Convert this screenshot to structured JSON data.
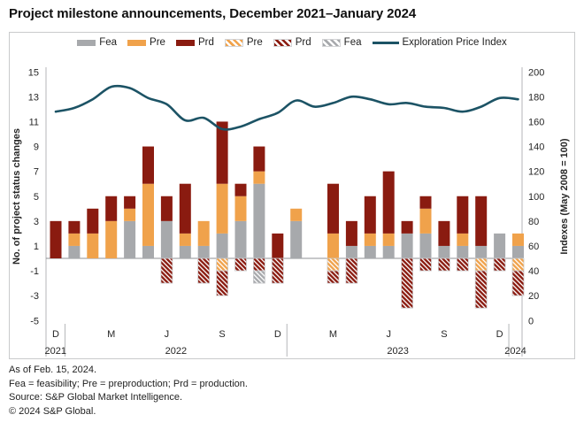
{
  "title": "Project milestone announcements, December 2021–January 2024",
  "legend": {
    "items": [
      {
        "label": "Fea",
        "swatch": "solid",
        "color_key": "fea"
      },
      {
        "label": "Pre",
        "swatch": "solid",
        "color_key": "pre"
      },
      {
        "label": "Prd",
        "swatch": "solid",
        "color_key": "prd"
      },
      {
        "label": "Pre",
        "swatch": "hatch",
        "color_key": "pre"
      },
      {
        "label": "Prd",
        "swatch": "hatch",
        "color_key": "prd"
      },
      {
        "label": "Fea",
        "swatch": "hatch",
        "color_key": "fea"
      },
      {
        "label": "Exploration Price Index",
        "swatch": "line",
        "color_key": "line"
      }
    ]
  },
  "colors": {
    "fea": "#a7a9ac",
    "pre": "#f0a24b",
    "prd": "#8a1b10",
    "line": "#1c5365",
    "axis_text": "#262626",
    "axis_line": "#b4b6b8",
    "zero_line": "#8f9194",
    "hatch_border": "#c9cacc"
  },
  "chart_data": {
    "type": "bar",
    "subtype": "stacked-bar-with-line-overlay",
    "title": "Project milestone announcements, December 2021–January 2024",
    "months": [
      "Dec 2021",
      "Jan 2022",
      "Feb 2022",
      "Mar 2022",
      "Apr 2022",
      "May 2022",
      "Jun 2022",
      "Jul 2022",
      "Aug 2022",
      "Sep 2022",
      "Oct 2022",
      "Nov 2022",
      "Dec 2022",
      "Jan 2023",
      "Feb 2023",
      "Mar 2023",
      "Apr 2023",
      "May 2023",
      "Jun 2023",
      "Jul 2023",
      "Aug 2023",
      "Sep 2023",
      "Oct 2023",
      "Nov 2023",
      "Dec 2023",
      "Jan 2024"
    ],
    "stacked_bars": {
      "positive_order": [
        "fea",
        "pre",
        "prd"
      ],
      "fea": [
        0,
        1,
        0,
        0,
        3,
        1,
        3,
        1,
        1,
        2,
        3,
        6,
        0,
        3,
        0,
        0,
        1,
        1,
        1,
        2,
        2,
        1,
        1,
        1,
        2,
        1
      ],
      "pre": [
        0,
        1,
        2,
        3,
        1,
        5,
        0,
        1,
        2,
        4,
        2,
        1,
        0,
        1,
        0,
        2,
        0,
        1,
        1,
        0,
        2,
        0,
        1,
        0,
        0,
        1
      ],
      "prd": [
        3,
        1,
        2,
        2,
        1,
        3,
        2,
        4,
        0,
        5,
        1,
        2,
        2,
        0,
        0,
        4,
        2,
        3,
        5,
        1,
        1,
        2,
        3,
        4,
        0,
        0
      ],
      "negative_segments_note": "hatched bars below zero, ordered from axis downward",
      "negative_segments": [
        [],
        [],
        [],
        [],
        [],
        [],
        [
          [
            "prd",
            2
          ]
        ],
        [],
        [
          [
            "prd",
            2
          ]
        ],
        [
          [
            "pre",
            1
          ],
          [
            "prd",
            2
          ]
        ],
        [
          [
            "prd",
            1
          ]
        ],
        [
          [
            "prd",
            1
          ],
          [
            "fea",
            1
          ]
        ],
        [
          [
            "prd",
            2
          ]
        ],
        [],
        [],
        [
          [
            "pre",
            1
          ],
          [
            "prd",
            1
          ]
        ],
        [
          [
            "prd",
            2
          ]
        ],
        [],
        [],
        [
          [
            "prd",
            4
          ]
        ],
        [
          [
            "prd",
            1
          ]
        ],
        [
          [
            "prd",
            1
          ]
        ],
        [
          [
            "prd",
            1
          ]
        ],
        [
          [
            "pre",
            1
          ],
          [
            "prd",
            3
          ]
        ],
        [
          [
            "prd",
            1
          ]
        ],
        [
          [
            "pre",
            1
          ],
          [
            "prd",
            2
          ]
        ]
      ]
    },
    "line_series": {
      "name": "Exploration Price Index",
      "axis": "right",
      "values": [
        168,
        171,
        178,
        188,
        187,
        179,
        174,
        161,
        163,
        154,
        156,
        162,
        167,
        177,
        172,
        175,
        180,
        178,
        174,
        175,
        172,
        171,
        168,
        172,
        179,
        178
      ]
    },
    "left_axis": {
      "label": "No. of project status changes",
      "min": -5,
      "max": 15,
      "ticks": [
        15,
        13,
        11,
        9,
        7,
        5,
        3,
        1,
        -1,
        -3,
        -5
      ]
    },
    "right_axis": {
      "label": "Indexes (May 2008 = 100)",
      "min": 0,
      "max": 200,
      "ticks": [
        200,
        180,
        160,
        140,
        120,
        100,
        80,
        60,
        40,
        20,
        0
      ]
    },
    "x_month_ticks": [
      {
        "index": 0,
        "label": "D"
      },
      {
        "index": 3,
        "label": "M"
      },
      {
        "index": 6,
        "label": "J"
      },
      {
        "index": 9,
        "label": "S"
      },
      {
        "index": 12,
        "label": "D"
      },
      {
        "index": 15,
        "label": "M"
      },
      {
        "index": 18,
        "label": "J"
      },
      {
        "index": 21,
        "label": "S"
      },
      {
        "index": 24,
        "label": "D"
      }
    ],
    "x_year_labels": [
      {
        "label": "2021",
        "span": [
          0,
          0
        ]
      },
      {
        "label": "2022",
        "span": [
          1,
          12
        ]
      },
      {
        "label": "2023",
        "span": [
          13,
          24
        ]
      },
      {
        "label": "2024",
        "span": [
          25,
          25
        ]
      }
    ],
    "year_separators_after_index": [
      0,
      12,
      24
    ],
    "grid": "off",
    "legend_position": "top"
  },
  "footer": {
    "lines": [
      "As of Feb. 15, 2024.",
      "Fea = feasibility; Pre = preproduction; Prd = production.",
      "Source: S&P Global Market Intelligence.",
      "© 2024 S&P Global."
    ]
  }
}
